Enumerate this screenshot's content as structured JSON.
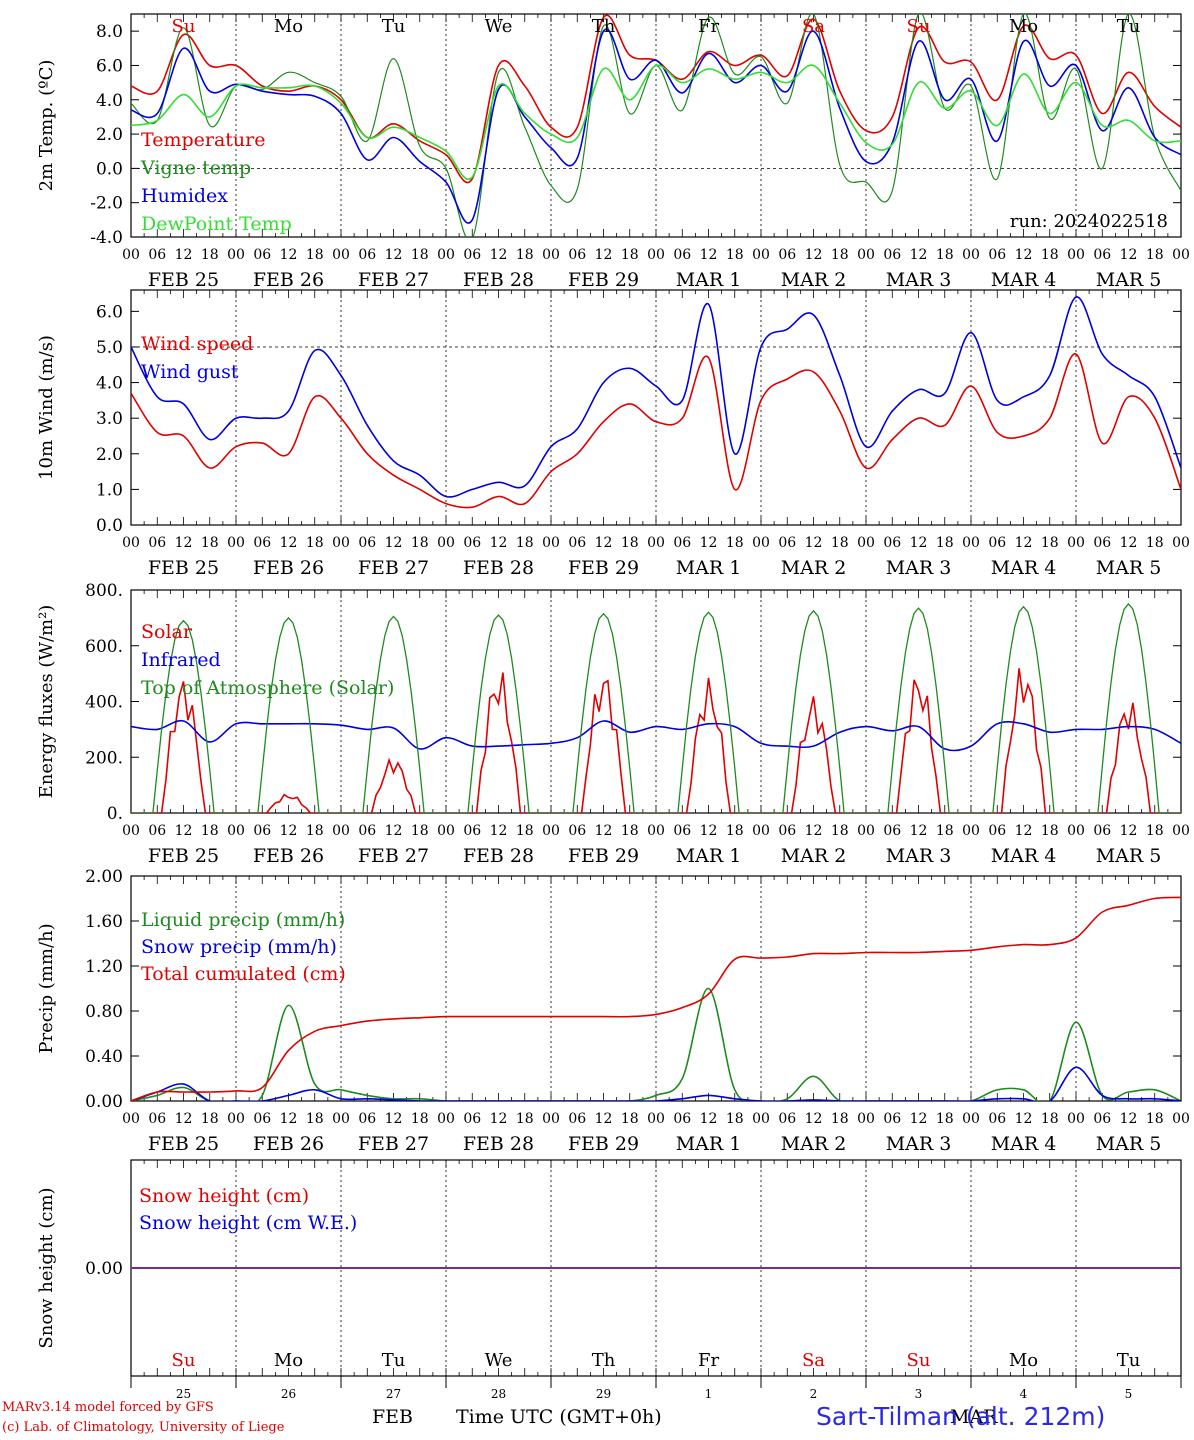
{
  "chart_data": [
    {
      "type": "line",
      "ylabel": "2m Temp. (ºC)",
      "ylim": [
        -4,
        9
      ],
      "yticks": [
        "-4.0",
        "-2.0",
        "0.0",
        "2.0",
        "4.0",
        "6.0",
        "8.0"
      ],
      "annotation": "run: 2024022518",
      "x_hours": [
        0,
        6,
        12,
        18,
        24,
        30,
        36,
        42,
        48,
        54,
        60,
        66,
        72,
        78,
        84,
        90,
        96,
        102,
        108,
        114,
        120,
        126,
        132,
        138,
        144,
        150,
        156,
        162,
        168,
        174,
        180,
        186,
        192,
        198,
        204,
        210,
        216,
        222,
        228,
        234,
        240
      ],
      "series": [
        {
          "name": "Temperature",
          "color": "#e00000",
          "values": [
            4.8,
            4.5,
            7.8,
            6.0,
            6.0,
            4.8,
            4.5,
            4.8,
            4.0,
            1.8,
            2.6,
            1.6,
            0.8,
            -0.6,
            6.0,
            4.8,
            2.4,
            2.4,
            8.8,
            6.6,
            6.3,
            5.2,
            6.8,
            6.0,
            6.6,
            5.4,
            8.7,
            4.5,
            2.2,
            3.0,
            8.2,
            6.2,
            6.2,
            4.0,
            8.3,
            6.4,
            6.6,
            3.2,
            5.6,
            3.6,
            2.4
          ]
        },
        {
          "name": "Vigne temp",
          "color": "#1f8a1f",
          "values": [
            3.8,
            2.8,
            8.2,
            2.5,
            4.8,
            4.6,
            5.6,
            5.0,
            4.2,
            1.6,
            6.4,
            1.3,
            0.0,
            -4.1,
            5.6,
            2.4,
            -1.0,
            -1.2,
            8.3,
            3.2,
            6.0,
            3.4,
            8.8,
            5.5,
            6.5,
            3.8,
            9.0,
            0.2,
            -0.8,
            -1.3,
            9.0,
            3.5,
            4.8,
            -0.6,
            9.0,
            2.9,
            5.8,
            0.0,
            9.0,
            1.8,
            -1.3
          ]
        },
        {
          "name": "Humidex",
          "color": "#0000e0",
          "values": [
            3.4,
            3.2,
            7.0,
            4.5,
            4.9,
            4.5,
            4.3,
            4.2,
            3.2,
            0.5,
            1.8,
            0.4,
            -0.8,
            -3.0,
            4.6,
            3.0,
            1.2,
            0.6,
            8.0,
            5.2,
            6.3,
            4.4,
            6.7,
            5.0,
            6.0,
            4.5,
            8.0,
            3.5,
            0.4,
            1.5,
            7.4,
            4.0,
            5.2,
            1.6,
            7.4,
            4.8,
            6.0,
            2.2,
            4.7,
            1.8,
            0.8
          ]
        },
        {
          "name": "DewPoint Temp",
          "color": "#33dd33",
          "values": [
            2.5,
            2.8,
            4.3,
            3.0,
            4.8,
            4.7,
            4.7,
            4.8,
            3.8,
            1.8,
            2.4,
            1.8,
            1.0,
            -0.5,
            4.8,
            3.2,
            2.0,
            1.8,
            5.8,
            4.0,
            6.0,
            5.0,
            5.8,
            5.2,
            5.6,
            5.0,
            6.0,
            3.8,
            1.5,
            1.4,
            5.0,
            3.5,
            4.5,
            2.5,
            5.5,
            3.2,
            5.0,
            2.5,
            2.8,
            1.6,
            1.6
          ]
        }
      ]
    },
    {
      "type": "line",
      "ylabel": "10m Wind (m/s)",
      "ylim": [
        0,
        6.6
      ],
      "yticks": [
        "0.0",
        "1.0",
        "2.0",
        "3.0",
        "4.0",
        "5.0",
        "6.0"
      ],
      "x_hours": [
        0,
        6,
        12,
        18,
        24,
        30,
        36,
        42,
        48,
        54,
        60,
        66,
        72,
        78,
        84,
        90,
        96,
        102,
        108,
        114,
        120,
        126,
        132,
        138,
        144,
        150,
        156,
        162,
        168,
        174,
        180,
        186,
        192,
        198,
        204,
        210,
        216,
        222,
        228,
        234,
        240
      ],
      "series": [
        {
          "name": "Wind speed",
          "color": "#e00000",
          "values": [
            3.7,
            2.6,
            2.5,
            1.6,
            2.2,
            2.3,
            2.0,
            3.6,
            3.0,
            2.0,
            1.4,
            1.0,
            0.6,
            0.5,
            0.8,
            0.6,
            1.5,
            2.0,
            2.9,
            3.4,
            2.9,
            3.0,
            4.7,
            1.0,
            3.5,
            4.1,
            4.3,
            3.2,
            1.6,
            2.4,
            3.0,
            2.8,
            3.9,
            2.6,
            2.5,
            3.0,
            4.8,
            2.3,
            3.6,
            3.0,
            1.0
          ]
        },
        {
          "name": "Wind gust",
          "color": "#0000e0",
          "values": [
            5.0,
            3.6,
            3.4,
            2.4,
            3.0,
            3.0,
            3.2,
            4.9,
            4.2,
            2.8,
            1.8,
            1.4,
            0.8,
            1.0,
            1.2,
            1.1,
            2.2,
            2.7,
            4.0,
            4.4,
            3.9,
            3.5,
            6.2,
            2.0,
            5.0,
            5.5,
            5.9,
            4.2,
            2.2,
            3.2,
            3.8,
            3.7,
            5.4,
            3.5,
            3.6,
            4.2,
            6.4,
            4.8,
            4.2,
            3.6,
            1.6
          ]
        }
      ]
    },
    {
      "type": "line",
      "ylabel": "Energy fluxes (W/m²)",
      "ylim": [
        0,
        800
      ],
      "yticks": [
        "0.",
        "200.",
        "400.",
        "600.",
        "800."
      ],
      "series": [
        {
          "name": "Solar",
          "color": "#e00000",
          "daily_peaks": [
            500,
            70,
            205,
            530,
            530,
            490,
            430,
            520,
            550,
            420
          ]
        },
        {
          "name": "Infrared",
          "color": "#0000e0",
          "values": [
            310,
            300,
            330,
            255,
            320,
            320,
            320,
            320,
            315,
            300,
            305,
            230,
            270,
            240,
            240,
            245,
            250,
            270,
            330,
            290,
            310,
            300,
            320,
            310,
            250,
            240,
            240,
            290,
            310,
            295,
            310,
            230,
            240,
            320,
            320,
            290,
            300,
            300,
            310,
            300,
            250
          ]
        },
        {
          "name": "Top of Atmosphere (Solar)",
          "color": "#1f8a1f",
          "daily_peaks": [
            690,
            700,
            705,
            710,
            715,
            720,
            725,
            735,
            740,
            750
          ]
        }
      ]
    },
    {
      "type": "line",
      "ylabel": "Precip (mm/h)",
      "ylim": [
        0,
        2.0
      ],
      "yticks": [
        "0.00",
        "0.40",
        "0.80",
        "1.20",
        "1.60",
        "2.00"
      ],
      "x_hours": [
        0,
        6,
        12,
        18,
        24,
        30,
        36,
        42,
        48,
        54,
        60,
        66,
        72,
        78,
        84,
        90,
        96,
        102,
        108,
        114,
        120,
        126,
        132,
        138,
        144,
        150,
        156,
        162,
        168,
        174,
        180,
        186,
        192,
        198,
        204,
        210,
        216,
        222,
        228,
        234,
        240
      ],
      "series": [
        {
          "name": "Liquid precip (mm/h)",
          "color": "#1f8a1f",
          "values": [
            0.0,
            0.05,
            0.12,
            0.0,
            0.0,
            0.05,
            0.85,
            0.15,
            0.1,
            0.05,
            0.02,
            0.02,
            0.0,
            0.0,
            0.0,
            0.0,
            0.0,
            0.0,
            0.0,
            0.0,
            0.05,
            0.2,
            1.0,
            0.1,
            0.0,
            0.02,
            0.22,
            0.0,
            0.0,
            0.0,
            0.0,
            0.0,
            0.0,
            0.1,
            0.1,
            0.0,
            0.7,
            0.05,
            0.08,
            0.1,
            0.0
          ]
        },
        {
          "name": "Snow precip (mm/h)",
          "color": "#0000e0",
          "values": [
            0.0,
            0.08,
            0.15,
            0.0,
            0.0,
            0.0,
            0.05,
            0.1,
            0.02,
            0.02,
            0.01,
            0.0,
            0.0,
            0.0,
            0.0,
            0.0,
            0.0,
            0.0,
            0.0,
            0.0,
            0.0,
            0.02,
            0.05,
            0.02,
            0.0,
            0.0,
            0.01,
            0.0,
            0.0,
            0.0,
            0.0,
            0.0,
            0.0,
            0.02,
            0.02,
            0.0,
            0.3,
            0.05,
            0.02,
            0.02,
            0.0
          ]
        },
        {
          "name": "Total cumulated (cm)",
          "color": "#e00000",
          "values": [
            0.0,
            0.08,
            0.08,
            0.08,
            0.09,
            0.12,
            0.45,
            0.62,
            0.67,
            0.71,
            0.73,
            0.74,
            0.75,
            0.75,
            0.75,
            0.75,
            0.75,
            0.75,
            0.75,
            0.75,
            0.77,
            0.83,
            0.95,
            1.26,
            1.27,
            1.28,
            1.31,
            1.31,
            1.32,
            1.32,
            1.32,
            1.33,
            1.34,
            1.37,
            1.39,
            1.39,
            1.45,
            1.68,
            1.74,
            1.8,
            1.81
          ]
        }
      ]
    },
    {
      "type": "line",
      "ylabel": "Snow height (cm)",
      "ylim": [
        -1,
        1
      ],
      "yticks": [
        "0.00"
      ],
      "series": [
        {
          "name": "Snow height (cm)",
          "color": "#e00000",
          "values": [
            0,
            0
          ]
        },
        {
          "name": "Snow height (cm W.E.)",
          "color": "#0000e0",
          "values": [
            0,
            0
          ]
        }
      ]
    }
  ],
  "axis": {
    "hour_ticks": [
      "00",
      "06",
      "12",
      "18"
    ],
    "last_tick": "00",
    "date_labels": [
      "FEB 25",
      "FEB 26",
      "FEB 27",
      "FEB 28",
      "FEB 29",
      "MAR  1",
      "MAR  2",
      "MAR  3",
      "MAR  4",
      "MAR  5"
    ],
    "weekdays": [
      "Su",
      "Mo",
      "Tu",
      "We",
      "Th",
      "Fr",
      "Sa",
      "Su",
      "Mo",
      "Tu"
    ],
    "weekend_index": [
      0,
      6,
      7
    ],
    "day_numbers": [
      "25",
      "26",
      "27",
      "28",
      "29",
      "1",
      "2",
      "3",
      "4",
      "5"
    ]
  },
  "footer": {
    "model_line": "MARv3.14 model forced by GFS",
    "credit_line": "(c) Lab. of Climatology, University of Liege",
    "xlabel": "Time UTC (GMT+0h)",
    "month_feb": "FEB",
    "month_mar": "MAR",
    "station": "Sart-Tilman (alt. 212m)"
  },
  "colors": {
    "red": "#e00000",
    "green": "#1f8a1f",
    "blue": "#0000e0",
    "lightgreen": "#33dd33",
    "weekend": "#e00000",
    "purple": "#7a2a8a"
  }
}
